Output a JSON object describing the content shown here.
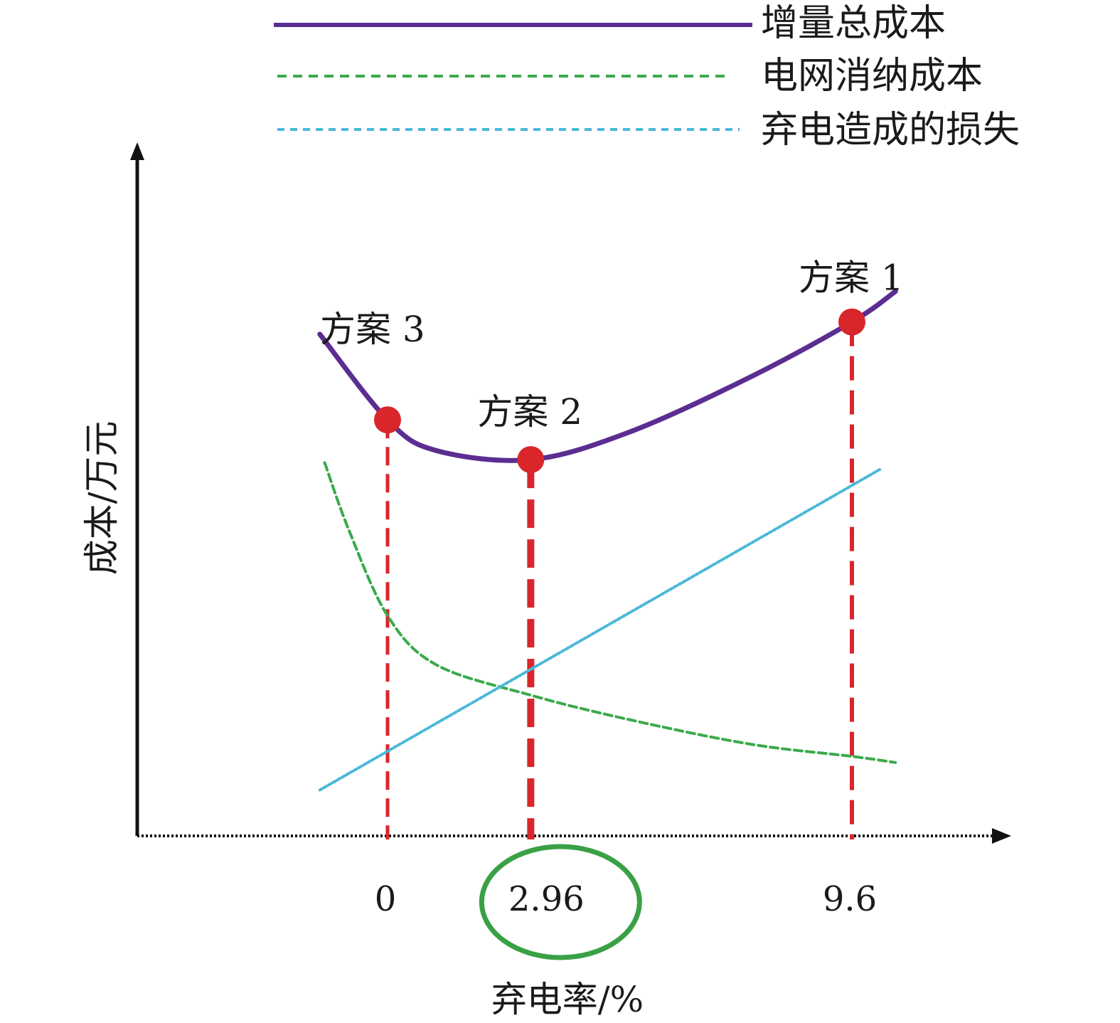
{
  "colors": {
    "total_cost": "#5b2d91",
    "grid_cost": "#3aaa4a",
    "curtailment_loss": "#4ab8d8",
    "marker": "#d9262b",
    "highlight_circle": "#3aa046",
    "axis": "#111111"
  },
  "chart_data": {
    "type": "line",
    "xlabel": "弃电率/%",
    "ylabel": "成本/万元",
    "x_ticks": [
      "0",
      "2.96",
      "9.6"
    ],
    "highlighted_tick": "2.96",
    "legend_position": "top",
    "grid": false,
    "series": [
      {
        "name": "增量总成本",
        "style": "solid",
        "color_key": "total_cost",
        "points": [
          [
            -1.4,
            8.2
          ],
          [
            0,
            6.8
          ],
          [
            1.0,
            6.3
          ],
          [
            2.96,
            6.15
          ],
          [
            5.0,
            6.6
          ],
          [
            7.5,
            7.5
          ],
          [
            9.6,
            8.4
          ],
          [
            10.5,
            8.9
          ]
        ]
      },
      {
        "name": "电网消纳成本",
        "style": "dashed",
        "color_key": "grid_cost",
        "points": [
          [
            -1.3,
            6.1
          ],
          [
            -0.8,
            5.0
          ],
          [
            0,
            3.6
          ],
          [
            1.0,
            2.8
          ],
          [
            2.96,
            2.3
          ],
          [
            5.0,
            1.9
          ],
          [
            7.5,
            1.5
          ],
          [
            9.6,
            1.3
          ],
          [
            10.5,
            1.2
          ]
        ]
      },
      {
        "name": "弃电造成的损失",
        "style": "dotted",
        "color_key": "curtailment_loss",
        "points": [
          [
            -1.4,
            0.75
          ],
          [
            10.2,
            6.0
          ]
        ]
      }
    ],
    "schemes": [
      {
        "label": "方案 1",
        "x": 9.6,
        "y": 8.4
      },
      {
        "label": "方案 2",
        "x": 2.96,
        "y": 6.15
      },
      {
        "label": "方案 3",
        "x": 0,
        "y": 6.8
      }
    ]
  }
}
